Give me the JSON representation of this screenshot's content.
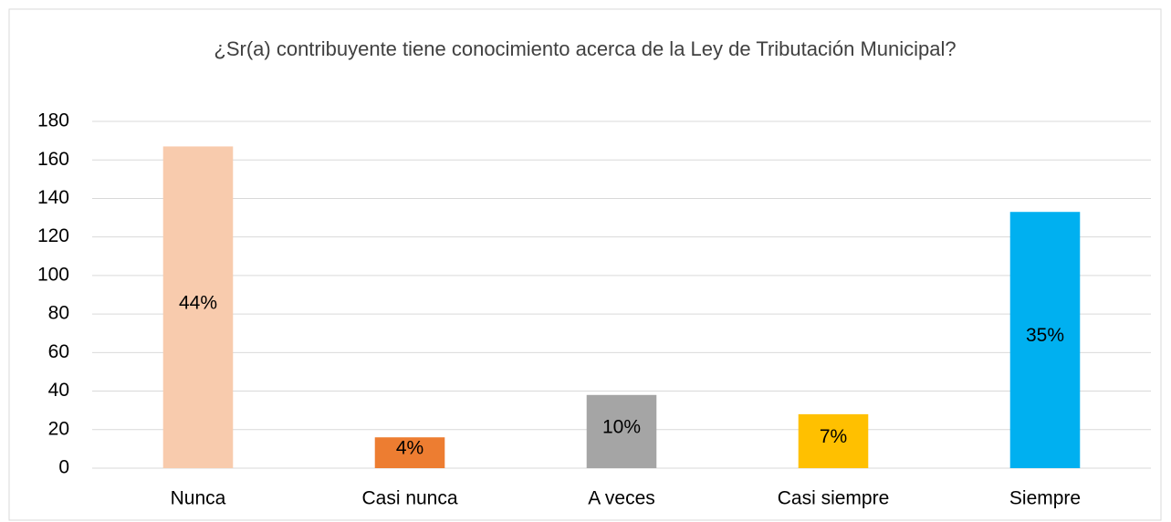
{
  "chart_data": {
    "type": "bar",
    "title": "¿Sr(a) contribuyente tiene conocimiento acerca de la Ley de Tributación Municipal?",
    "categories": [
      "Nunca",
      "Casi nunca",
      "A veces",
      "Casi siempre",
      "Siempre"
    ],
    "values": [
      167,
      16,
      38,
      28,
      133
    ],
    "value_labels": [
      "44%",
      "4%",
      "10%",
      "7%",
      "35%"
    ],
    "colors": [
      "#f8cbad",
      "#ed7d31",
      "#a5a5a5",
      "#ffc000",
      "#00b0f0"
    ],
    "ylim": [
      0,
      180
    ],
    "yticks": [
      0,
      20,
      40,
      60,
      80,
      100,
      120,
      140,
      160,
      180
    ],
    "grid": true
  }
}
